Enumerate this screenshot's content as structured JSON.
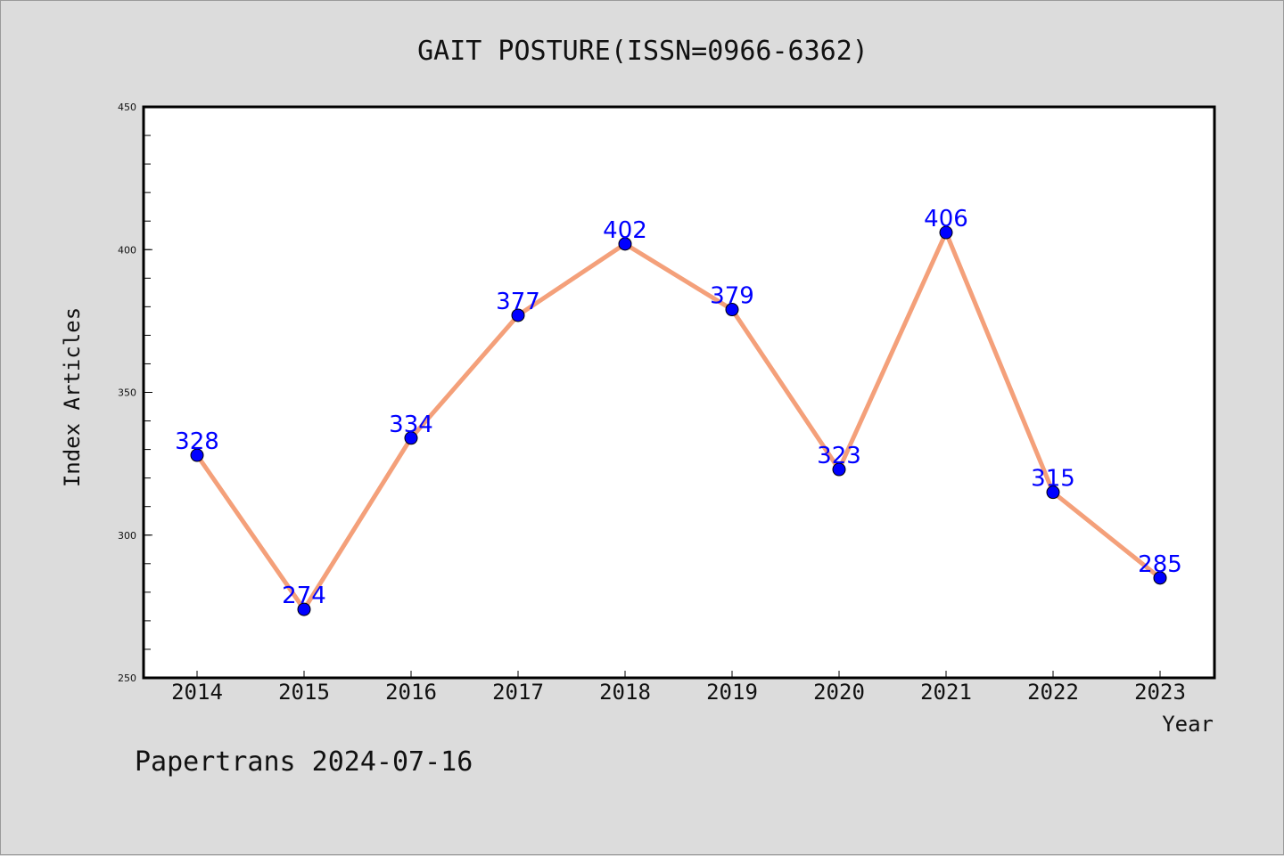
{
  "chart_data": {
    "type": "line",
    "title": "GAIT POSTURE(ISSN=0966-6362)",
    "xlabel": "Year",
    "ylabel": "Index Articles",
    "categories": [
      "2014",
      "2015",
      "2016",
      "2017",
      "2018",
      "2019",
      "2020",
      "2021",
      "2022",
      "2023"
    ],
    "series": [
      {
        "values": [
          328,
          274,
          334,
          377,
          402,
          379,
          323,
          406,
          315,
          285
        ]
      }
    ],
    "ylim": [
      250,
      450
    ],
    "yticks": [
      250,
      300,
      350,
      400,
      450
    ],
    "grid": false,
    "colors": {
      "line": "#f4a07a",
      "marker": "#0000ff",
      "data_label": "#0000ff"
    }
  },
  "footer": {
    "text": "Papertrans 2024-07-16"
  }
}
